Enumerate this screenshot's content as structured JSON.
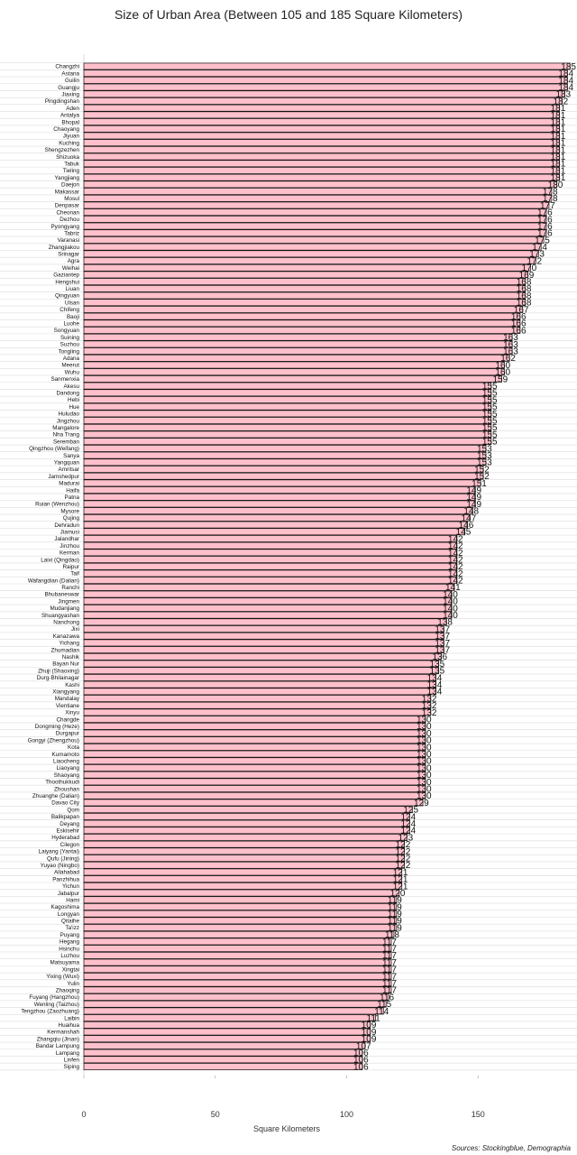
{
  "chart_data": {
    "type": "bar",
    "orientation": "horizontal",
    "title": "Size of Urban Area (Between 105 and 185 Square Kilometers)",
    "xlabel": "Square Kilometers",
    "ylabel": "",
    "xlim": [
      0,
      185
    ],
    "xticks": [
      0,
      50,
      100,
      150
    ],
    "grid": "horizontal",
    "bar_color": "#ffc0cb",
    "bar_edge_color": "#111111",
    "source": "Sources: Stockingblue, Demographia",
    "categories": [
      "Changzhi",
      "Astana",
      "Guilin",
      "Guangju",
      "Jiaxing",
      "Pingdingshan",
      "Aden",
      "Antalya",
      "Bhopal",
      "Chaoyang",
      "Jiyuan",
      "Kuching",
      "Shengzezhen",
      "Shizuoka",
      "Tabuk",
      "Tieling",
      "Yangjiang",
      "Daejon",
      "Makassar",
      "Mosul",
      "Denpasar",
      "Cheonan",
      "Dezhou",
      "Pyongyang",
      "Tabriz",
      "Varanasi",
      "Zhangjiakou",
      "Srinagar",
      "Agra",
      "Weihai",
      "Gaziantep",
      "Hengshui",
      "Liuan",
      "Qingyuan",
      "Ulsan",
      "Chifeng",
      "Baoji",
      "Luohe",
      "Songyuan",
      "Suining",
      "Suzhou",
      "Tongling",
      "Adana",
      "Meerut",
      "Wuhu",
      "Sanmenxia",
      "Akesu",
      "Dandong",
      "Hebi",
      "Hue",
      "Huludao",
      "Jingzhou",
      "Mangalore",
      "Nha Trang",
      "Seremban",
      "Qingzhou (Weifang)",
      "Sanya",
      "Yangquan",
      "Amritsar",
      "Jamshedpur",
      "Madurai",
      "Haifa",
      "Patna",
      "Ruian (Wenzhou)",
      "Mysore",
      "Qujing",
      "Dehradun",
      "Jiamusi",
      "Jalandhar",
      "Jinzhou",
      "Kerman",
      "Laixi (Qingdao)",
      "Raipur",
      "Taif",
      "Wafangdian (Dalian)",
      "Ranchi",
      "Bhubaneswar",
      "Jingmen",
      "Mudanjiang",
      "Shuangyashan",
      "Nanchong",
      "Jixi",
      "Kanazawa",
      "Yichang",
      "Zhumadian",
      "Nashik",
      "Bayan Nur",
      "Zhuji (Shaoxing)",
      "Durg-Bhilainagar",
      "Kashi",
      "Xiangyang",
      "Mandalay",
      "Vientiane",
      "Xinyu",
      "Changde",
      "Dongming (Heze)",
      "Durgapur",
      "Gongyi (Zhengzhou)",
      "Kota",
      "Kumamoto",
      "Liaocheng",
      "Liaoyang",
      "Shaoyang",
      "Thoothukkudi",
      "Zhoushan",
      "Zhuanghe (Dalian)",
      "Davao City",
      "Qom",
      "Balikpapan",
      "Deyang",
      "Eskisehir",
      "Hyderabad",
      "Cilegon",
      "Laiyang (Yantai)",
      "Qufu (Jining)",
      "Yuyao (Ningbo)",
      "Allahabad",
      "Panzhihua",
      "Yichun",
      "Jabalpur",
      "Hami",
      "Kagoshima",
      "Longyan",
      "Qitaihe",
      "Ta'izz",
      "Puyang",
      "Hegang",
      "Hsinchu",
      "Luzhou",
      "Matsuyama",
      "Xingtai",
      "Yixing (Wuxi)",
      "Yulin",
      "Zhaoqing",
      "Fuyang (Hangzhou)",
      "Wenling (Taizhou)",
      "Tengzhou (Zaozhuang)",
      "Laibin",
      "Huaihua",
      "Kermanshah",
      "Zhangqiu (Jinan)",
      "Bandar Lampung",
      "Lampang",
      "Linfen",
      "Siping"
    ],
    "values": [
      185,
      184,
      184,
      184,
      183,
      182,
      181,
      181,
      181,
      181,
      181,
      181,
      181,
      181,
      181,
      181,
      181,
      180,
      178,
      178,
      177,
      176,
      176,
      176,
      176,
      175,
      174,
      173,
      172,
      170,
      169,
      168,
      168,
      168,
      168,
      167,
      166,
      166,
      166,
      163,
      163,
      163,
      162,
      160,
      160,
      159,
      155,
      155,
      155,
      155,
      155,
      155,
      155,
      155,
      155,
      153,
      153,
      153,
      152,
      152,
      151,
      149,
      149,
      149,
      148,
      147,
      146,
      145,
      142,
      142,
      142,
      142,
      142,
      142,
      142,
      141,
      140,
      140,
      140,
      140,
      138,
      137,
      137,
      137,
      137,
      136,
      135,
      135,
      134,
      134,
      134,
      132,
      132,
      132,
      130,
      130,
      130,
      130,
      130,
      130,
      130,
      130,
      130,
      130,
      130,
      130,
      129,
      125,
      124,
      124,
      124,
      123,
      122,
      122,
      122,
      122,
      121,
      121,
      121,
      120,
      119,
      119,
      119,
      119,
      119,
      118,
      117,
      117,
      117,
      117,
      117,
      117,
      117,
      117,
      116,
      115,
      114,
      111,
      109,
      109,
      109,
      107,
      106,
      106,
      106
    ]
  }
}
